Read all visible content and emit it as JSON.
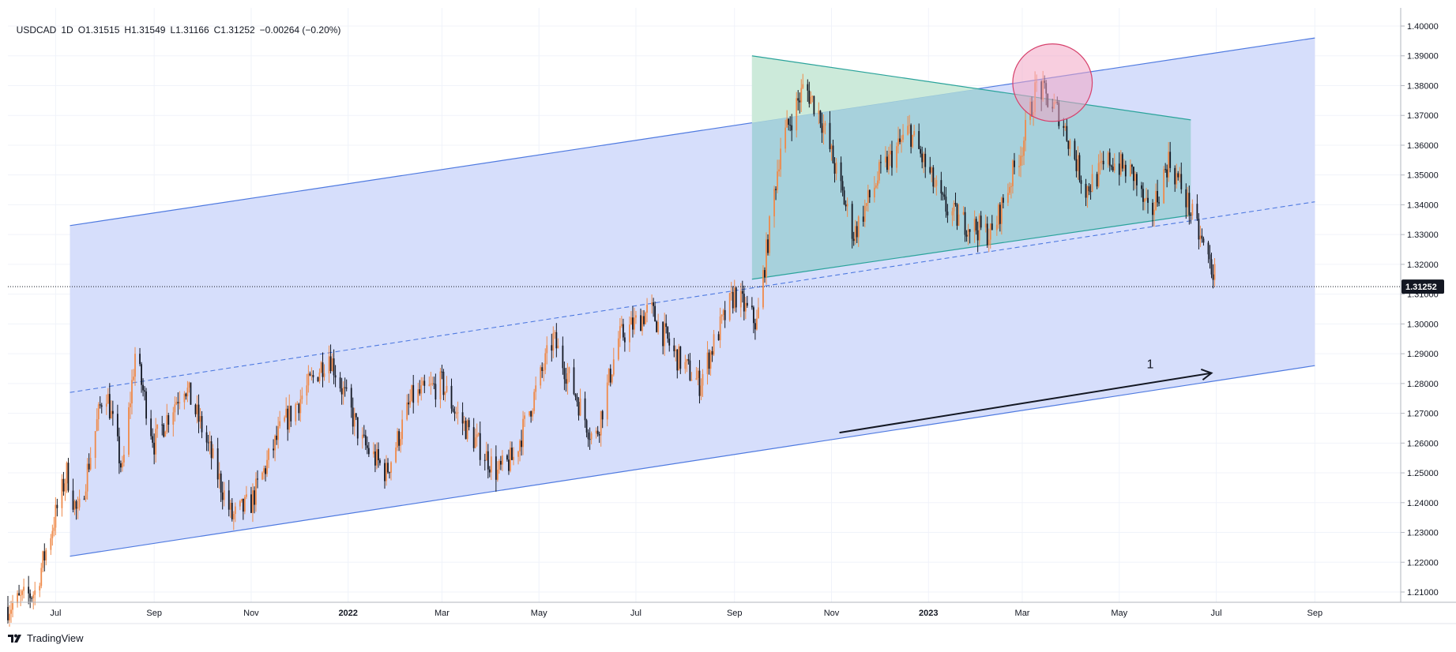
{
  "header": {
    "symbol": "USDCAD",
    "interval": "1D",
    "open": "O1.31515",
    "high": "H1.31549",
    "low": "L1.31166",
    "close": "C1.31252",
    "change": "−0.00264 (−0.20%)"
  },
  "brand": {
    "name": "TradingView",
    "icon": "tradingview-logo-icon"
  },
  "colors": {
    "channel_fill": "#d4dcfb",
    "channel_line": "#4f7ae0",
    "triangle_fill_blue": "#9fcfd6",
    "triangle_fill_green": "#cdebd9",
    "triangle_line": "#2aa39b",
    "ellipse_fill": "#f2a6c4",
    "ellipse_stroke": "#d6416c",
    "candle_up": "#ef8a4a",
    "candle_down": "#131722"
  },
  "chart_data": {
    "type": "candlestick",
    "symbol": "USDCAD",
    "interval": "1D",
    "last_price_label": "1.31252",
    "last_price": 1.31252,
    "ylim": [
      1.205,
      1.4
    ],
    "y_ticks": [
      "1.40000",
      "1.39000",
      "1.38000",
      "1.37000",
      "1.36000",
      "1.35000",
      "1.34000",
      "1.33000",
      "1.32000",
      "1.31000",
      "1.30000",
      "1.29000",
      "1.28000",
      "1.27000",
      "1.26000",
      "1.25000",
      "1.24000",
      "1.23000",
      "1.22000",
      "1.21000"
    ],
    "x_ticks": [
      {
        "label": "Jul",
        "date": "2021-07-01"
      },
      {
        "label": "Sep",
        "date": "2021-09-01"
      },
      {
        "label": "Nov",
        "date": "2021-11-01"
      },
      {
        "label": "2022",
        "date": "2022-01-01",
        "bold": true
      },
      {
        "label": "Mar",
        "date": "2022-03-01"
      },
      {
        "label": "May",
        "date": "2022-05-01"
      },
      {
        "label": "Jul",
        "date": "2022-07-01"
      },
      {
        "label": "Sep",
        "date": "2022-09-01"
      },
      {
        "label": "Nov",
        "date": "2022-11-01"
      },
      {
        "label": "2023",
        "date": "2023-01-01",
        "bold": true
      },
      {
        "label": "Mar",
        "date": "2023-03-01"
      },
      {
        "label": "May",
        "date": "2023-05-01"
      },
      {
        "label": "Jul",
        "date": "2023-07-01"
      },
      {
        "label": "Sep",
        "date": "2023-09-01"
      }
    ],
    "xlim": [
      "2021-06-01",
      "2023-10-25"
    ],
    "price_path": [
      [
        "2021-06-01",
        1.205
      ],
      [
        "2021-06-18",
        1.21
      ],
      [
        "2021-07-08",
        1.25
      ],
      [
        "2021-07-15",
        1.235
      ],
      [
        "2021-08-01",
        1.28
      ],
      [
        "2021-08-12",
        1.25
      ],
      [
        "2021-08-20",
        1.29
      ],
      [
        "2021-09-01",
        1.26
      ],
      [
        "2021-09-20",
        1.28
      ],
      [
        "2021-10-01",
        1.265
      ],
      [
        "2021-10-20",
        1.235
      ],
      [
        "2021-11-01",
        1.24
      ],
      [
        "2021-11-20",
        1.265
      ],
      [
        "2021-12-20",
        1.29
      ],
      [
        "2022-01-10",
        1.26
      ],
      [
        "2022-01-25",
        1.25
      ],
      [
        "2022-02-10",
        1.275
      ],
      [
        "2022-03-01",
        1.28
      ],
      [
        "2022-03-10",
        1.27
      ],
      [
        "2022-04-05",
        1.25
      ],
      [
        "2022-04-15",
        1.255
      ],
      [
        "2022-05-10",
        1.295
      ],
      [
        "2022-05-25",
        1.275
      ],
      [
        "2022-06-05",
        1.26
      ],
      [
        "2022-06-20",
        1.295
      ],
      [
        "2022-07-10",
        1.305
      ],
      [
        "2022-07-25",
        1.29
      ],
      [
        "2022-08-10",
        1.28
      ],
      [
        "2022-08-20",
        1.295
      ],
      [
        "2022-09-01",
        1.31
      ],
      [
        "2022-09-15",
        1.3
      ],
      [
        "2022-09-30",
        1.36
      ],
      [
        "2022-10-15",
        1.38
      ],
      [
        "2022-10-25",
        1.37
      ],
      [
        "2022-11-15",
        1.33
      ],
      [
        "2022-12-01",
        1.35
      ],
      [
        "2022-12-20",
        1.365
      ],
      [
        "2023-01-10",
        1.34
      ],
      [
        "2023-01-20",
        1.335
      ],
      [
        "2023-02-10",
        1.33
      ],
      [
        "2023-03-01",
        1.36
      ],
      [
        "2023-03-10",
        1.38
      ],
      [
        "2023-03-25",
        1.37
      ],
      [
        "2023-04-10",
        1.345
      ],
      [
        "2023-04-25",
        1.355
      ],
      [
        "2023-05-10",
        1.35
      ],
      [
        "2023-05-20",
        1.335
      ],
      [
        "2023-06-01",
        1.355
      ],
      [
        "2023-06-10",
        1.345
      ],
      [
        "2023-06-20",
        1.33
      ],
      [
        "2023-07-01",
        1.315
      ]
    ],
    "annotations": {
      "channel_upper": {
        "start": [
          "2021-07-10",
          1.333
        ],
        "end": [
          "2023-09-01",
          1.396
        ]
      },
      "channel_lower": {
        "start": [
          "2021-07-10",
          1.222
        ],
        "end": [
          "2023-09-01",
          1.286
        ]
      },
      "channel_mid": {
        "start": [
          "2021-07-10",
          1.277
        ],
        "end": [
          "2023-09-01",
          1.341
        ]
      },
      "triangle": [
        [
          "2022-09-12",
          1.39
        ],
        [
          "2023-06-15",
          1.3685
        ],
        [
          "2023-06-15",
          1.3365
        ],
        [
          "2022-09-12",
          1.315
        ]
      ],
      "ellipse": {
        "center": [
          "2023-03-20",
          1.381
        ],
        "rx_days": 25,
        "ry_price": 0.013
      },
      "trend_arrow": {
        "start": [
          "2022-11-06",
          1.2635
        ],
        "end": [
          "2023-06-28",
          1.2835
        ],
        "label": "1"
      }
    }
  }
}
